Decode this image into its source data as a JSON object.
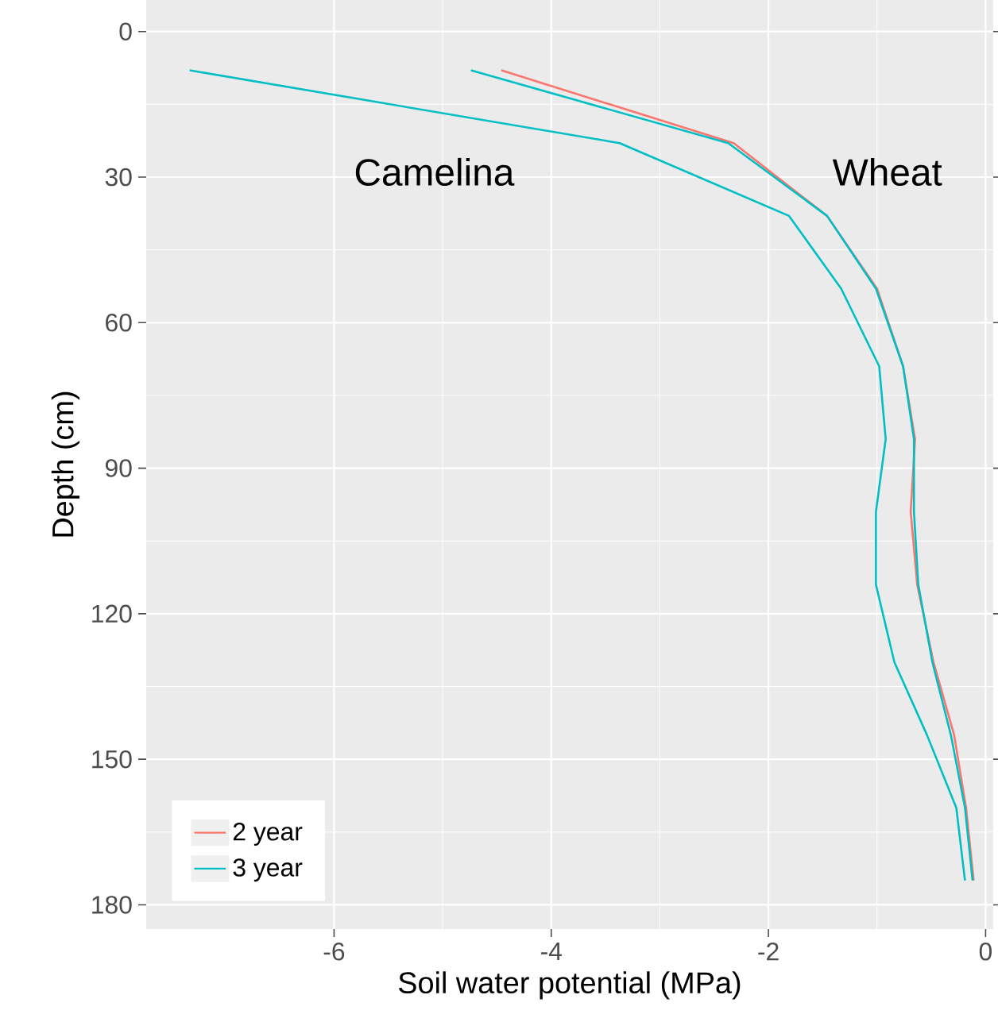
{
  "chart_data": {
    "type": "line",
    "xlabel": "Soil water potential (MPa)",
    "ylabel": "Depth (cm)",
    "xlim": [
      -7.73,
      0.07
    ],
    "ylim": [
      185,
      -6.5
    ],
    "xticks": [
      -6,
      -4,
      -2,
      0
    ],
    "yticks": [
      0,
      30,
      60,
      90,
      120,
      150,
      180
    ],
    "grid": true,
    "legend": "bottom left",
    "line_style": "solid",
    "marker": "none",
    "series": [
      {
        "name": "2 year",
        "color": "#F8766D",
        "x": [
          -4.46,
          -2.32,
          -1.46,
          -1.0,
          -0.76,
          -0.65,
          -0.69,
          -0.63,
          -0.48,
          -0.29,
          -0.18,
          -0.11
        ],
        "values": [
          8,
          23,
          38,
          53,
          69,
          84,
          99,
          114,
          130,
          145,
          160,
          175
        ]
      },
      {
        "name": "3 year",
        "color": "#00BFC4",
        "x": [
          -4.74,
          -2.37,
          -1.46,
          -1.01,
          -0.76,
          -0.66,
          -0.66,
          -0.62,
          -0.49,
          -0.32,
          -0.19,
          -0.12
        ],
        "values": [
          8,
          23,
          38,
          53,
          69,
          84,
          99,
          114,
          130,
          145,
          160,
          175
        ]
      },
      {
        "color": "#00BFC4",
        "x": [
          -7.33,
          -3.37,
          -1.81,
          -1.33,
          -0.98,
          -0.92,
          -1.01,
          -1.01,
          -0.84,
          -0.54,
          -0.27,
          -0.19
        ],
        "values": [
          8,
          23,
          38,
          53,
          69,
          84,
          99,
          114,
          130,
          145,
          160,
          175
        ]
      }
    ],
    "annotations": [
      "Camelina",
      "Wheat"
    ]
  }
}
